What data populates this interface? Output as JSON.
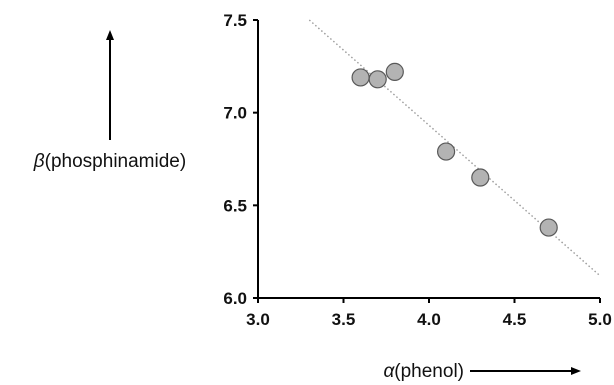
{
  "chart_data": {
    "type": "scatter",
    "xlabel_symbol": "α",
    "xlabel_text": "(phenol)",
    "ylabel_symbol": "β",
    "ylabel_text": "(phosphinamide)",
    "xlim": [
      3.0,
      5.0
    ],
    "ylim": [
      6.0,
      7.5
    ],
    "x_ticks": [
      "3.0",
      "3.5",
      "4.0",
      "4.5",
      "5.0"
    ],
    "y_ticks": [
      "6.0",
      "6.5",
      "7.0",
      "7.5"
    ],
    "grid": false,
    "legend": "none",
    "points": [
      {
        "x": 3.6,
        "y": 7.19
      },
      {
        "x": 3.7,
        "y": 7.18
      },
      {
        "x": 3.8,
        "y": 7.22
      },
      {
        "x": 4.1,
        "y": 6.79
      },
      {
        "x": 4.3,
        "y": 6.65
      },
      {
        "x": 4.7,
        "y": 6.38
      }
    ],
    "trendline": {
      "x": [
        3.3,
        5.0
      ],
      "y": [
        7.5,
        6.12
      ],
      "style": "dotted"
    },
    "colors": {
      "marker_fill": "#b3b3b3",
      "marker_stroke": "#595959",
      "axis": "#000000",
      "trendline": "#9a9a9a"
    }
  }
}
